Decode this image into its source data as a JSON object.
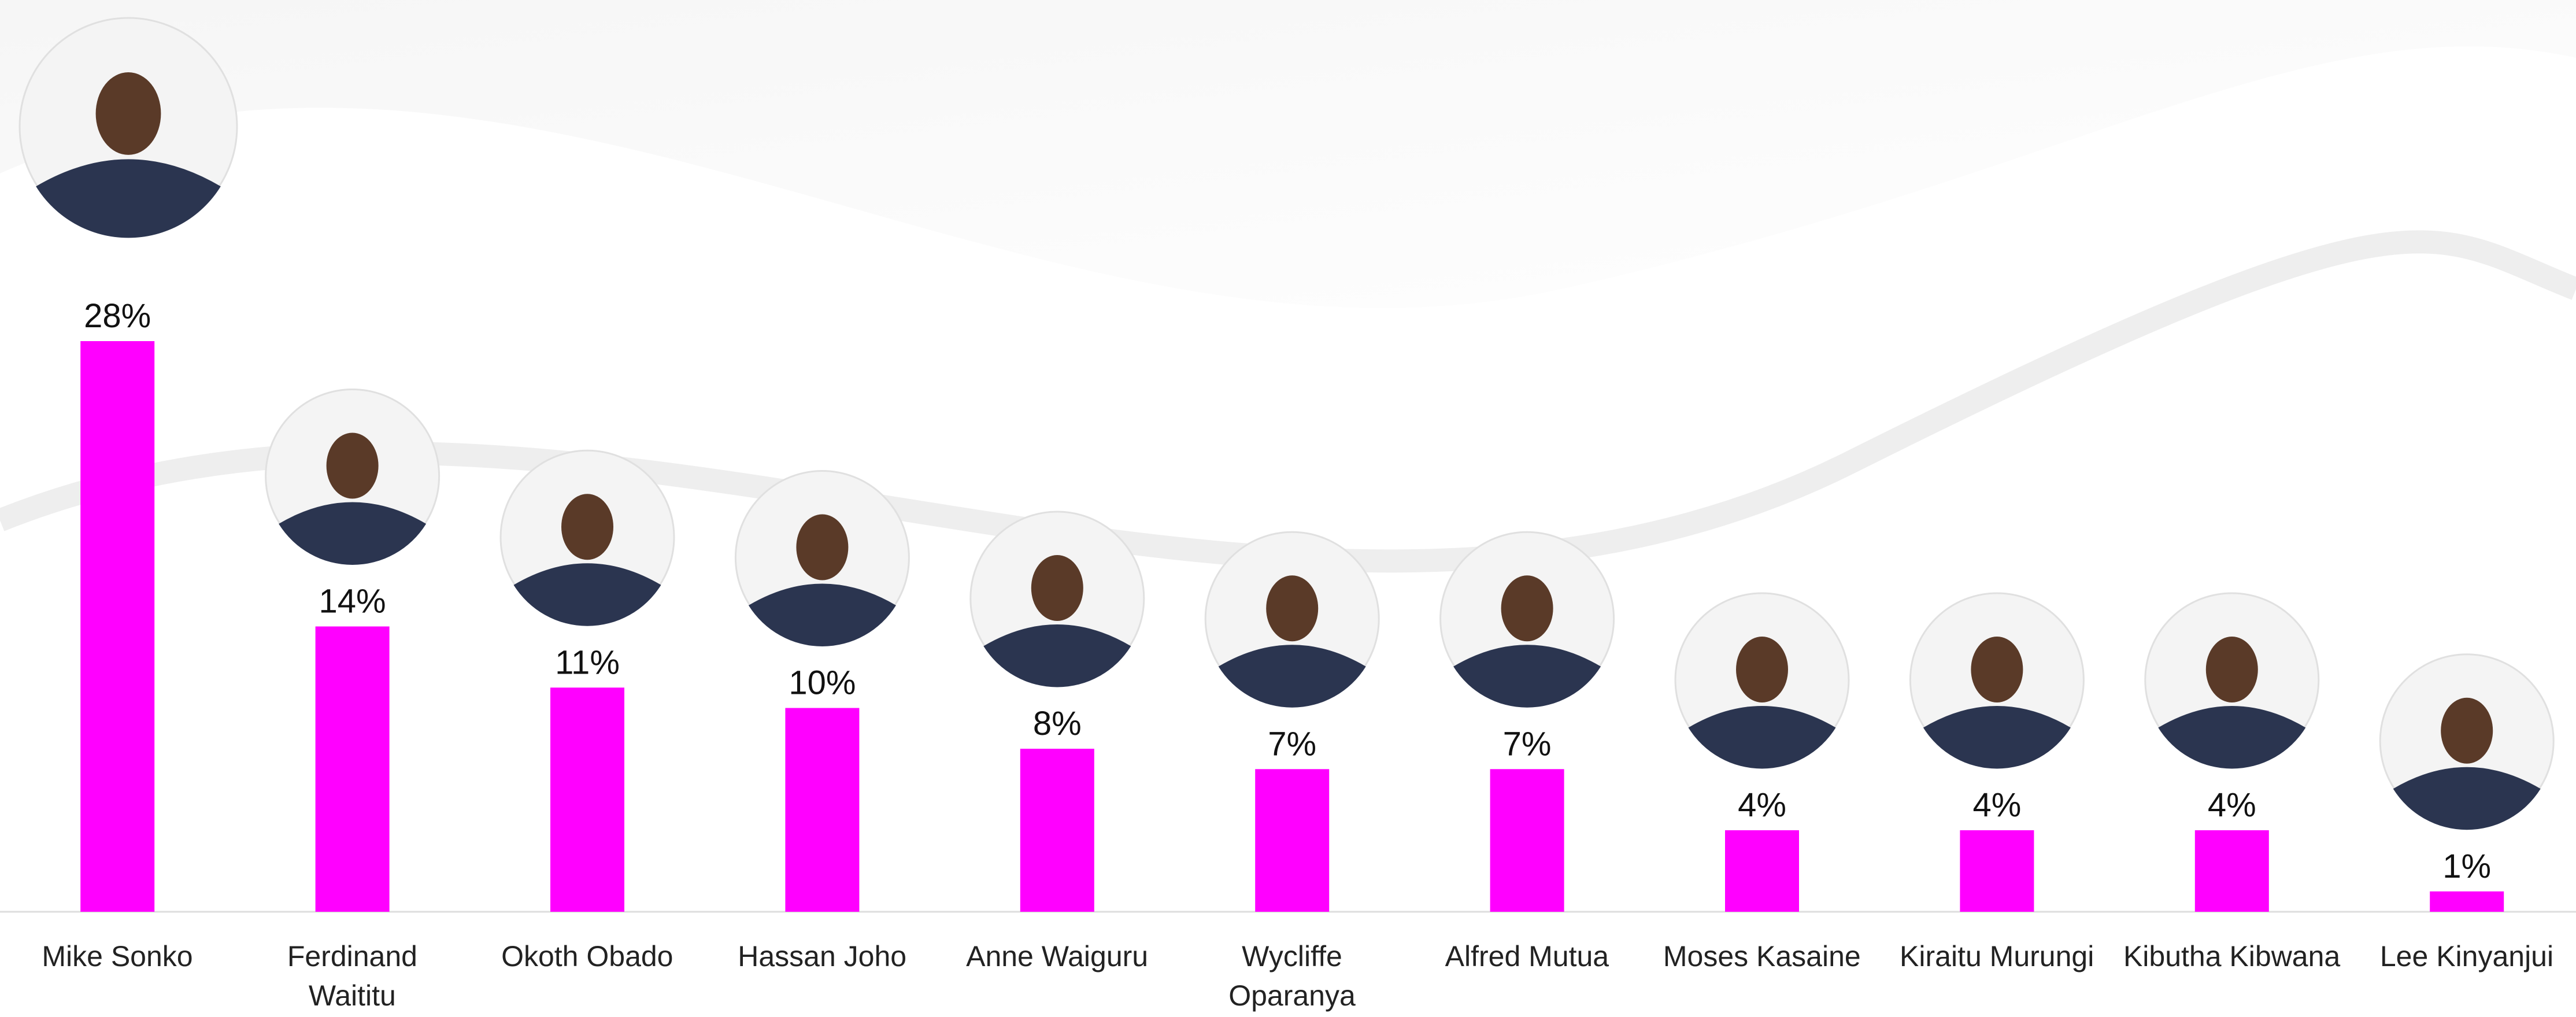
{
  "chart_data": {
    "type": "bar",
    "categories": [
      "Mike Sonko",
      "Ferdinand\nWaititu",
      "Okoth Obado",
      "Hassan Joho",
      "Anne Waiguru",
      "Wycliffe\nOparanya",
      "Alfred Mutua",
      "Moses Kasaine",
      "Kiraitu Murungi",
      "Kibutha Kibwana",
      "Lee Kinyanjui"
    ],
    "values": [
      28,
      14,
      11,
      10,
      8,
      7,
      7,
      4,
      4,
      4,
      1
    ],
    "value_labels": [
      "28%",
      "14%",
      "11%",
      "10%",
      "8%",
      "7%",
      "7%",
      "4%",
      "4%",
      "4%",
      "1%"
    ],
    "color": "#ff00ff"
  }
}
